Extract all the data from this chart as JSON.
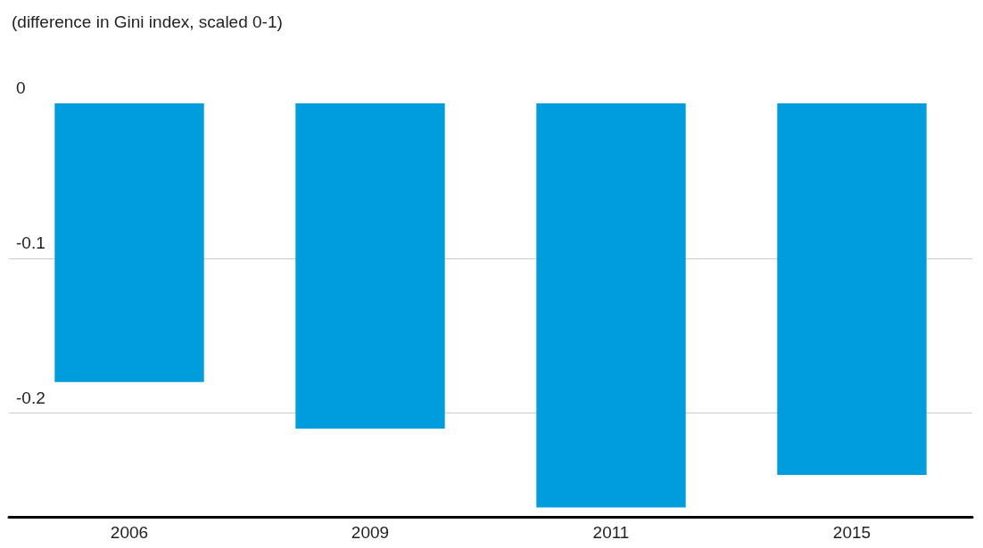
{
  "chart_data": {
    "type": "bar",
    "subtitle": "(difference in Gini index, scaled 0-1)",
    "categories": [
      "2006",
      "2009",
      "2011",
      "2015"
    ],
    "values": [
      -0.18,
      -0.21,
      -0.261,
      -0.24
    ],
    "color": "#009ddc",
    "ylim": [
      -0.267,
      0
    ],
    "yticks": [
      0,
      -0.1,
      -0.2
    ],
    "grid": "y"
  }
}
